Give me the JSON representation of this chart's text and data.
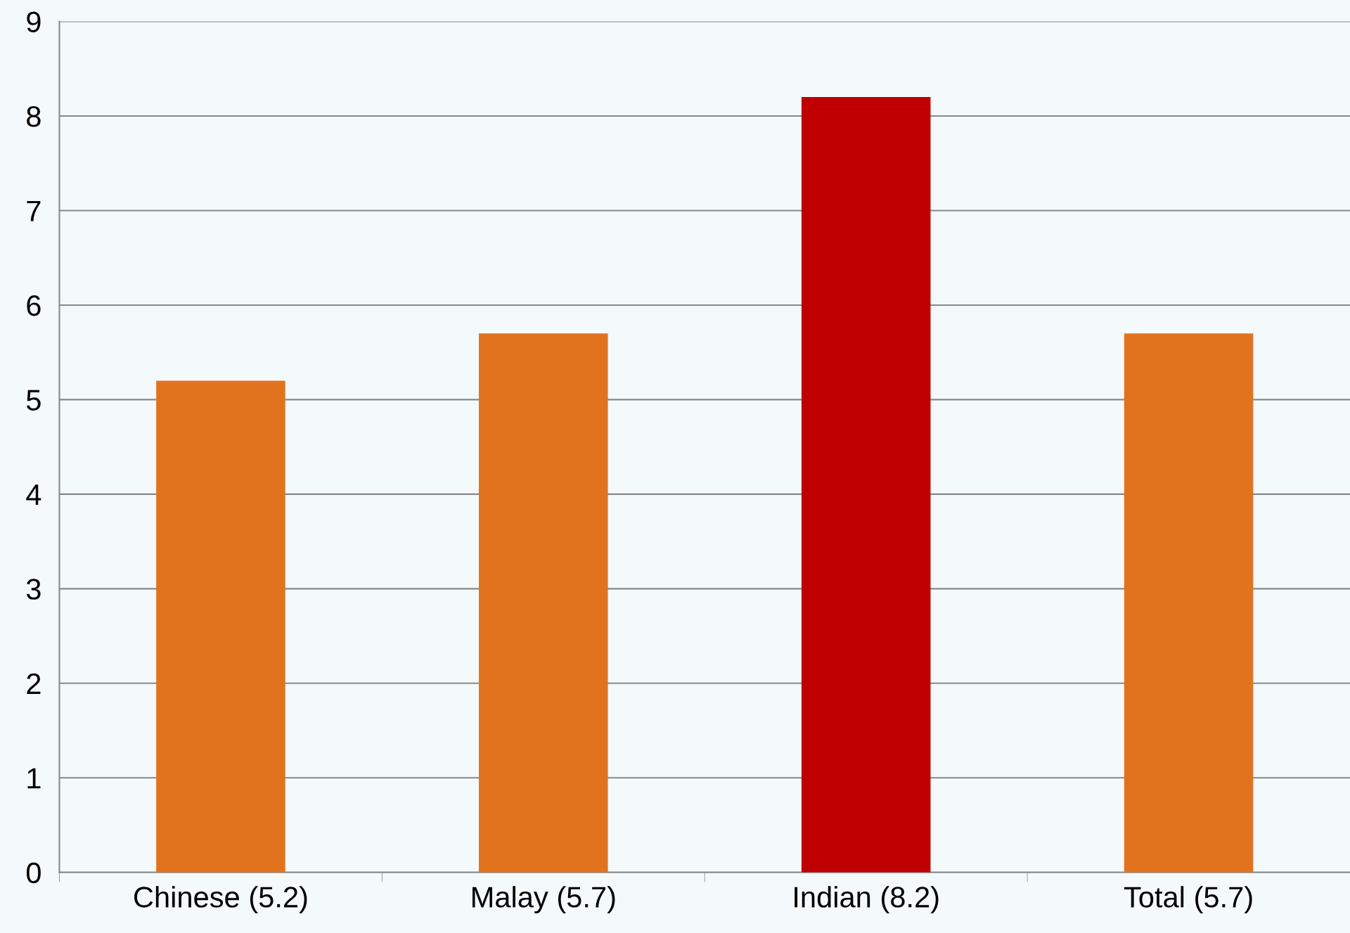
{
  "chart_data": {
    "type": "bar",
    "categories": [
      "Chinese (5.2)",
      "Malay (5.7)",
      "Indian (8.2)",
      "Total (5.7)"
    ],
    "values": [
      5.2,
      5.7,
      8.2,
      5.7
    ],
    "colors": [
      "#e2731e",
      "#e2731e",
      "#c00000",
      "#e2731e"
    ],
    "ylim": [
      0,
      9
    ],
    "yticks": [
      0,
      1,
      2,
      3,
      4,
      5,
      6,
      7,
      8,
      9
    ],
    "grid": "y",
    "legend": false
  }
}
